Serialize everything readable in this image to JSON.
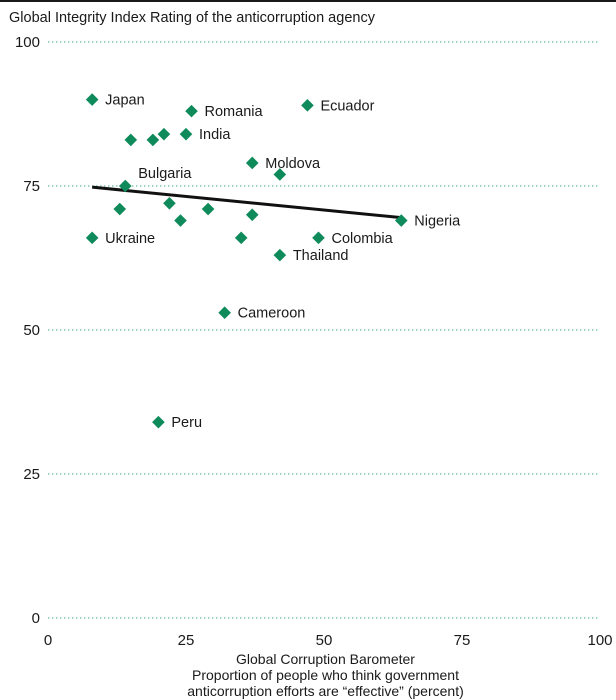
{
  "chart_data": {
    "type": "scatter",
    "title": "Global Integrity Index Rating of the anticorruption agency",
    "xlabel": [
      "Global Corruption Barometer",
      "Proportion of people who think government",
      "anticorruption efforts are “effective” (percent)"
    ],
    "ylabel": "Global Integrity Index Rating of the anticorruption agency",
    "xlim": [
      0,
      100
    ],
    "ylim": [
      0,
      100
    ],
    "x_ticks": [
      0,
      25,
      50,
      75,
      100
    ],
    "y_ticks": [
      0,
      25,
      50,
      75,
      100
    ],
    "grid": "horizontal dotted",
    "point_color": "#0f8a5a",
    "trend_color": "#111111",
    "grid_color": "#7fc3ad",
    "points": [
      {
        "x": 8,
        "y": 90,
        "label": "Japan"
      },
      {
        "x": 26,
        "y": 88,
        "label": "Romania"
      },
      {
        "x": 47,
        "y": 89,
        "label": "Ecuador"
      },
      {
        "x": 25,
        "y": 84,
        "label": "India"
      },
      {
        "x": 21,
        "y": 84,
        "label": ""
      },
      {
        "x": 19,
        "y": 83,
        "label": ""
      },
      {
        "x": 15,
        "y": 83,
        "label": ""
      },
      {
        "x": 37,
        "y": 79,
        "label": "Moldova"
      },
      {
        "x": 42,
        "y": 77,
        "label": ""
      },
      {
        "x": 14,
        "y": 75,
        "label": "Bulgaria"
      },
      {
        "x": 22,
        "y": 72,
        "label": ""
      },
      {
        "x": 13,
        "y": 71,
        "label": ""
      },
      {
        "x": 29,
        "y": 71,
        "label": ""
      },
      {
        "x": 37,
        "y": 70,
        "label": ""
      },
      {
        "x": 24,
        "y": 69,
        "label": ""
      },
      {
        "x": 64,
        "y": 69,
        "label": "Nigeria"
      },
      {
        "x": 8,
        "y": 66,
        "label": "Ukraine"
      },
      {
        "x": 35,
        "y": 66,
        "label": ""
      },
      {
        "x": 49,
        "y": 66,
        "label": "Colombia"
      },
      {
        "x": 42,
        "y": 63,
        "label": "Thailand"
      },
      {
        "x": 32,
        "y": 53,
        "label": "Cameroon"
      },
      {
        "x": 20,
        "y": 34,
        "label": "Peru"
      }
    ],
    "trendline": {
      "x": [
        8,
        64
      ],
      "y": [
        74.8,
        69.5
      ]
    }
  }
}
